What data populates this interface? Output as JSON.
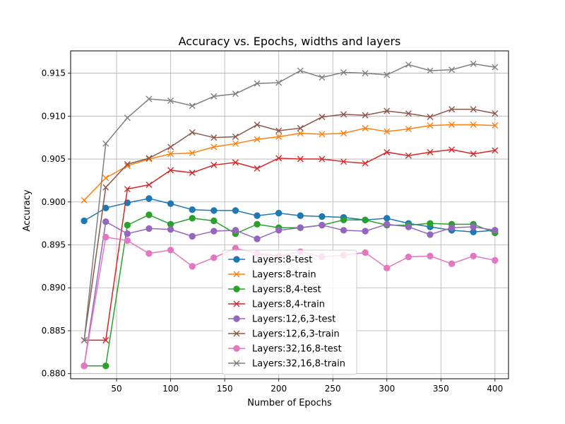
{
  "chart_data": {
    "type": "line",
    "title": "Accuracy vs. Epochs, widths and layers",
    "xlabel": "Number of Epochs",
    "ylabel": "Accuracy",
    "xlim": [
      7.5,
      412.5
    ],
    "ylim": [
      0.8794,
      0.9176
    ],
    "xticks": [
      50,
      100,
      150,
      200,
      250,
      300,
      350,
      400
    ],
    "xtick_labels": [
      "50",
      "100",
      "150",
      "200",
      "250",
      "300",
      "350",
      "400"
    ],
    "yticks": [
      0.88,
      0.885,
      0.89,
      0.895,
      0.9,
      0.905,
      0.91,
      0.915
    ],
    "ytick_labels": [
      "0.880",
      "0.885",
      "0.890",
      "0.895",
      "0.900",
      "0.905",
      "0.910",
      "0.915"
    ],
    "grid": true,
    "legend_position": "lower-center",
    "x": [
      20,
      40,
      60,
      80,
      100,
      120,
      140,
      160,
      180,
      200,
      220,
      240,
      260,
      280,
      300,
      320,
      340,
      360,
      380,
      400
    ],
    "series": [
      {
        "name": "Layers:8-test",
        "color": "#1f77b4",
        "marker": "circle",
        "values": [
          0.8978,
          0.8993,
          0.8999,
          0.9004,
          0.8998,
          0.8991,
          0.899,
          0.899,
          0.8984,
          0.8987,
          0.8984,
          0.8983,
          0.8982,
          0.8979,
          0.8981,
          0.8975,
          0.8971,
          0.8967,
          0.8965,
          0.8967
        ]
      },
      {
        "name": "Layers:8-train",
        "color": "#ff7f0e",
        "marker": "x",
        "values": [
          0.9002,
          0.9028,
          0.9042,
          0.905,
          0.9056,
          0.9057,
          0.9064,
          0.9068,
          0.9073,
          0.9076,
          0.908,
          0.9079,
          0.908,
          0.9086,
          0.9082,
          0.9085,
          0.9089,
          0.909,
          0.909,
          0.9089
        ]
      },
      {
        "name": "Layers:8,4-test",
        "color": "#2ca02c",
        "marker": "circle",
        "values": [
          0.8809,
          0.8809,
          0.8973,
          0.8985,
          0.8974,
          0.8981,
          0.8978,
          0.8963,
          0.8974,
          0.897,
          0.897,
          0.8973,
          0.8979,
          0.8979,
          0.8973,
          0.8973,
          0.8975,
          0.8974,
          0.8974,
          0.8964
        ]
      },
      {
        "name": "Layers:8,4-train",
        "color": "#d62728",
        "marker": "x",
        "values": [
          0.8839,
          0.8839,
          0.9015,
          0.902,
          0.9037,
          0.9034,
          0.9043,
          0.9046,
          0.9039,
          0.9051,
          0.905,
          0.905,
          0.9047,
          0.9045,
          0.9058,
          0.9054,
          0.9058,
          0.9061,
          0.9056,
          0.906
        ]
      },
      {
        "name": "Layers:12,6,3-test",
        "color": "#9467bd",
        "marker": "circle",
        "values": [
          0.8809,
          0.8977,
          0.8963,
          0.8969,
          0.8968,
          0.896,
          0.8966,
          0.8967,
          0.8957,
          0.8967,
          0.897,
          0.8973,
          0.8967,
          0.8966,
          0.8974,
          0.8971,
          0.8962,
          0.897,
          0.8971,
          0.8967
        ]
      },
      {
        "name": "Layers:12,6,3-train",
        "color": "#8c564b",
        "marker": "x",
        "values": [
          0.8839,
          0.9017,
          0.9044,
          0.9051,
          0.9064,
          0.9081,
          0.9075,
          0.9076,
          0.909,
          0.9083,
          0.9086,
          0.9099,
          0.9102,
          0.9101,
          0.9106,
          0.9103,
          0.9099,
          0.9108,
          0.9108,
          0.9103
        ]
      },
      {
        "name": "Layers:32,16,8-test",
        "color": "#e377c2",
        "marker": "circle",
        "values": [
          0.8809,
          0.8959,
          0.8955,
          0.894,
          0.8944,
          0.8925,
          0.8935,
          0.8946,
          0.894,
          0.8937,
          0.8942,
          0.8936,
          0.8938,
          0.8941,
          0.8923,
          0.8936,
          0.8937,
          0.8928,
          0.8937,
          0.8932
        ]
      },
      {
        "name": "Layers:32,16,8-train",
        "color": "#7f7f7f",
        "marker": "x",
        "values": [
          0.8839,
          0.9068,
          0.9098,
          0.912,
          0.9118,
          0.9112,
          0.9123,
          0.9126,
          0.9138,
          0.9139,
          0.9153,
          0.9145,
          0.9151,
          0.915,
          0.9148,
          0.916,
          0.9153,
          0.9154,
          0.9161,
          0.9157
        ]
      }
    ]
  }
}
